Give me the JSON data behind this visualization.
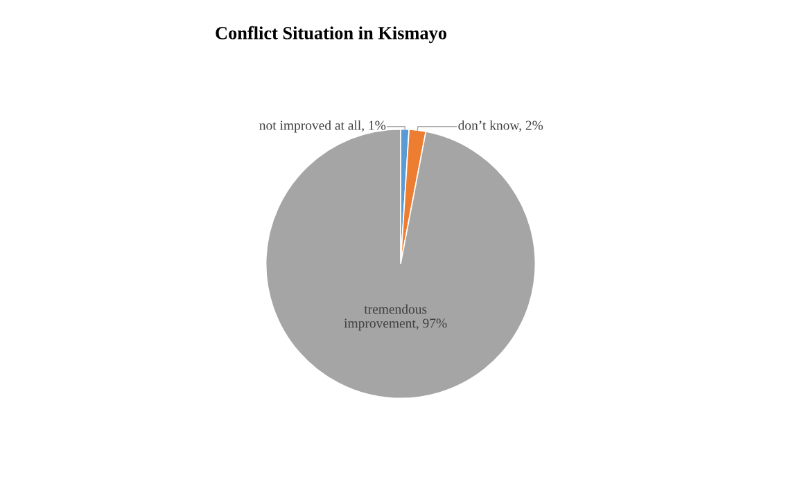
{
  "chart_data": {
    "type": "pie",
    "title": "Conflict Situation in Kismayo",
    "categories": [
      "not improved at all",
      "don’t know",
      "tremendous improvement"
    ],
    "values": [
      1,
      2,
      97
    ],
    "value_labels": [
      "1%",
      "2%",
      "97%"
    ],
    "colors": [
      "#5b9bd5",
      "#ed7d31",
      "#a5a5a5"
    ],
    "legend": false
  }
}
